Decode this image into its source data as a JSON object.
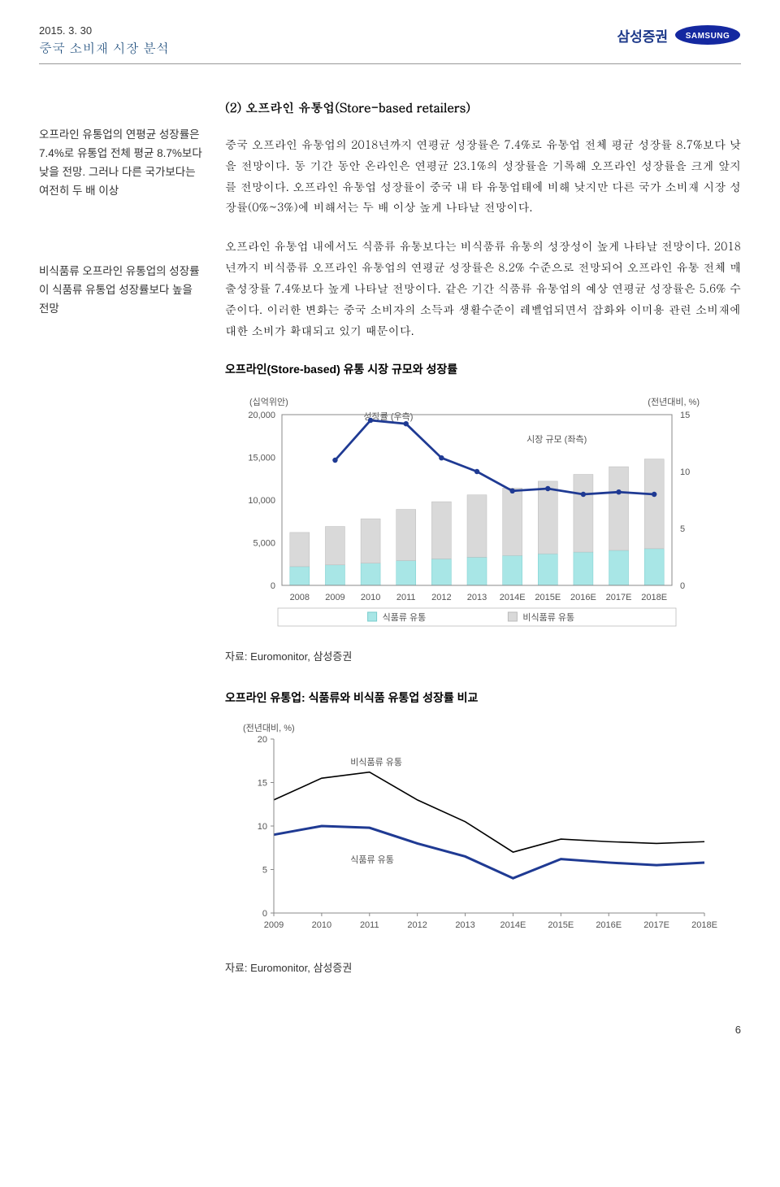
{
  "header": {
    "date": "2015. 3. 30",
    "title": "중국 소비재 시장 분석",
    "brand_ko": "삼성증권",
    "brand_en": "SAMSUNG"
  },
  "sidebar": {
    "block1": "오프라인 유통업의 연평균 성장률은 7.4%로 유통업 전체 평균 8.7%보다 낮을 전망. 그러나 다른 국가보다는 여전히 두 배 이상",
    "block2": "비식품류 오프라인 유통업의 성장률이 식품류 유통업 성장률보다 높을 전망"
  },
  "main": {
    "section_title": "(2) 오프라인 유통업(Store-based retailers)",
    "para1": "중국 오프라인 유통업의 2018년까지 연평균 성장률은 7.4%로 유통업 전체 평균 성장률 8.7%보다 낮을 전망이다. 동 기간 동안 온라인은 연평균 23.1%의 성장률을 기록해 오프라인 성장률을 크게 앞지를 전망이다. 오프라인 유통업 성장률이 중국 내 타 유통업태에 비해 낮지만 다른 국가 소비재 시장 성장률(0%~3%)에 비해서는 두 배 이상 높게 나타날 전망이다.",
    "para2": "오프라인 유통업 내에서도 식품류 유통보다는 비식품류 유통의 성장성이 높게 나타날 전망이다. 2018년까지 비식품류 오프라인 유통업의 연평균 성장률은 8.2% 수준으로 전망되어 오프라인 유통 전체 매출성장률 7.4%보다 높게 나타날 전망이다. 같은 기간 식품류 유통업의 예상 연평균 성장률은 5.6% 수준이다. 이러한 변화는 중국 소비자의 소득과 생활수준이 레벨업되면서 잡화와 이미용 관련 소비재에 대한 소비가 확대되고 있기 때문이다."
  },
  "chart1": {
    "title": "오프라인(Store-based) 유통 시장 규모와 성장률",
    "y1_label": "(십억위안)",
    "y2_label": "(전년대비, %)",
    "growth_label": "성장률 (우측)",
    "size_label": "시장 규모 (좌측)",
    "legend_food": "식품류 유통",
    "legend_nonfood": "비식품류 유통",
    "source": "자료: Euromonitor, 삼성증권",
    "categories": [
      "2008",
      "2009",
      "2010",
      "2011",
      "2012",
      "2013",
      "2014E",
      "2015E",
      "2016E",
      "2017E",
      "2018E"
    ],
    "food": [
      2200,
      2400,
      2600,
      2900,
      3100,
      3300,
      3500,
      3700,
      3900,
      4100,
      4300
    ],
    "nonfood": [
      4000,
      4500,
      5200,
      6000,
      6700,
      7300,
      7900,
      8500,
      9100,
      9800,
      10500
    ],
    "growth": [
      null,
      11.0,
      14.5,
      14.2,
      11.2,
      10.0,
      8.3,
      8.5,
      8.0,
      8.2,
      8.0
    ],
    "y1_ticks": [
      0,
      5000,
      10000,
      15000,
      20000
    ],
    "y2_ticks": [
      0,
      5,
      10,
      15
    ],
    "colors": {
      "food": "#a8e6e6",
      "nonfood": "#d9d9d9",
      "line": "#1f3a93",
      "axis": "#888",
      "text": "#555"
    }
  },
  "chart2": {
    "title": "오프라인 유통업: 식품류와 비식품 유통업 성장률 비교",
    "y_label": "(전년대비, %)",
    "nonfood_label": "비식품류 유통",
    "food_label": "식품류 유통",
    "source": "자료: Euromonitor, 삼성증권",
    "categories": [
      "2009",
      "2010",
      "2011",
      "2012",
      "2013",
      "2014E",
      "2015E",
      "2016E",
      "2017E",
      "2018E"
    ],
    "nonfood": [
      13.0,
      15.5,
      16.2,
      13.0,
      10.5,
      7.0,
      8.5,
      8.2,
      8.0,
      8.2
    ],
    "food": [
      9.0,
      10.0,
      9.8,
      8.0,
      6.5,
      4.0,
      6.2,
      5.8,
      5.5,
      5.8
    ],
    "y_ticks": [
      0,
      5,
      10,
      15,
      20
    ],
    "colors": {
      "nonfood": "#000000",
      "food": "#1f3a93",
      "axis": "#888",
      "text": "#555"
    }
  },
  "page_num": "6"
}
